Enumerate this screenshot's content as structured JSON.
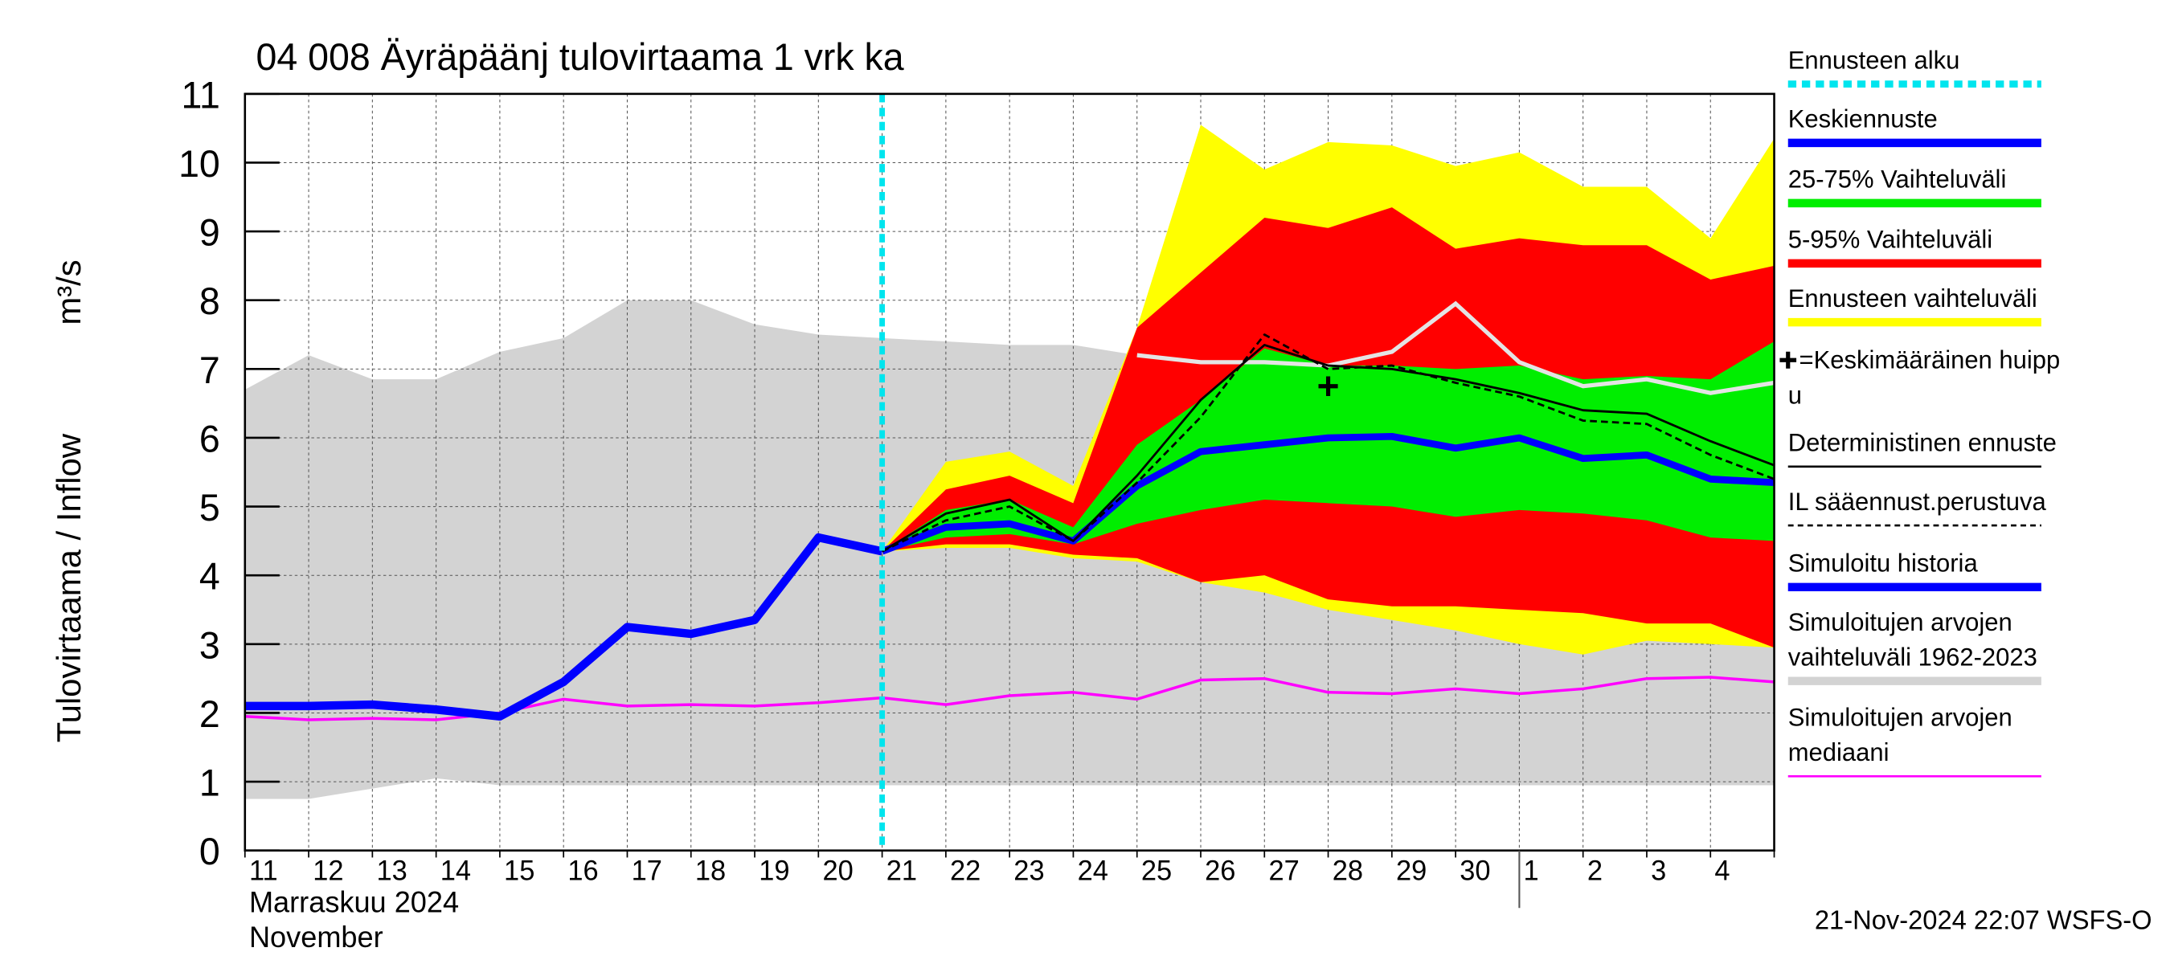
{
  "chart_data": {
    "type": "hydrograph",
    "title": "04 008 Äyräpäänj tulovirtaama 1 vrk ka",
    "y_label": "Tulovirtaama / Inflow",
    "y_unit": "m³/s",
    "x_month_labels": [
      "Marraskuu 2024",
      "November"
    ],
    "timestamp": "21-Nov-2024 22:07 WSFS-O",
    "categories": [
      "11",
      "12",
      "13",
      "14",
      "15",
      "16",
      "17",
      "18",
      "19",
      "20",
      "21",
      "22",
      "23",
      "24",
      "25",
      "26",
      "27",
      "28",
      "29",
      "30",
      "1",
      "2",
      "3",
      "4",
      null
    ],
    "month_break_index": 20,
    "forecast_start_index": 10,
    "ylim": [
      0,
      11
    ],
    "yticks": [
      0,
      1,
      2,
      3,
      4,
      5,
      6,
      7,
      8,
      9,
      10,
      11
    ],
    "grid": true,
    "sim_range": {
      "color": "#d3d3d3",
      "line_color": "#e4e4e4",
      "high": [
        6.7,
        7.2,
        6.85,
        6.85,
        7.25,
        7.45,
        8.0,
        8.0,
        7.65,
        7.5,
        7.45,
        7.4,
        7.35,
        7.35,
        7.2,
        7.1,
        7.1,
        7.05,
        7.25,
        7.95,
        7.1,
        6.75,
        6.85,
        6.65,
        6.8
      ],
      "low": [
        0.75,
        0.75,
        0.9,
        1.05,
        0.95,
        0.95,
        0.95,
        0.95,
        0.95,
        0.95,
        0.95,
        0.95,
        0.95,
        0.95,
        0.95,
        0.95,
        0.95,
        0.95,
        0.95,
        0.95,
        0.95,
        0.95,
        0.95,
        0.95,
        0.95
      ]
    },
    "bands": [
      {
        "color": "#ffff00",
        "high": [
          null,
          null,
          null,
          null,
          null,
          null,
          null,
          null,
          null,
          null,
          4.35,
          5.65,
          5.8,
          5.3,
          7.6,
          10.55,
          9.9,
          10.3,
          10.25,
          9.95,
          10.15,
          9.65,
          9.65,
          8.9,
          10.35
        ],
        "low": [
          null,
          null,
          null,
          null,
          null,
          null,
          null,
          null,
          null,
          null,
          4.35,
          4.4,
          4.4,
          4.25,
          4.2,
          3.9,
          3.75,
          3.5,
          3.35,
          3.2,
          3.0,
          2.85,
          3.05,
          3.0,
          2.95
        ]
      },
      {
        "color": "#ff0000",
        "high": [
          null,
          null,
          null,
          null,
          null,
          null,
          null,
          null,
          null,
          null,
          4.35,
          5.25,
          5.45,
          5.05,
          7.6,
          8.4,
          9.2,
          9.05,
          9.35,
          8.75,
          8.9,
          8.8,
          8.8,
          8.3,
          8.5
        ],
        "low": [
          null,
          null,
          null,
          null,
          null,
          null,
          null,
          null,
          null,
          null,
          4.35,
          4.45,
          4.45,
          4.3,
          4.25,
          3.9,
          4.0,
          3.65,
          3.55,
          3.55,
          3.5,
          3.45,
          3.3,
          3.3,
          2.95
        ]
      },
      {
        "color": "#00ee00",
        "high": [
          null,
          null,
          null,
          null,
          null,
          null,
          null,
          null,
          null,
          null,
          4.35,
          4.95,
          5.1,
          4.7,
          5.9,
          6.55,
          7.3,
          7.05,
          7.05,
          7.0,
          7.05,
          6.85,
          6.9,
          6.85,
          7.4
        ],
        "low": [
          null,
          null,
          null,
          null,
          null,
          null,
          null,
          null,
          null,
          null,
          4.35,
          4.55,
          4.6,
          4.45,
          4.75,
          4.95,
          5.1,
          5.05,
          5.0,
          4.85,
          4.95,
          4.9,
          4.8,
          4.55,
          4.5
        ]
      }
    ],
    "series": [
      {
        "color": "#ff00ff",
        "width": 2,
        "style": "solid",
        "values": [
          1.95,
          1.9,
          1.92,
          1.9,
          2.0,
          2.2,
          2.1,
          2.12,
          2.1,
          2.15,
          2.22,
          2.12,
          2.25,
          2.3,
          2.2,
          2.48,
          2.5,
          2.3,
          2.28,
          2.35,
          2.28,
          2.35,
          2.5,
          2.52,
          2.45
        ]
      },
      {
        "color": "#0000ff",
        "width": 6,
        "style": "solid",
        "values": [
          2.1,
          2.1,
          2.12,
          2.05,
          1.95,
          2.45,
          3.25,
          3.15,
          3.35,
          4.55,
          4.35,
          null,
          null,
          null,
          null,
          null,
          null,
          null,
          null,
          null,
          null,
          null,
          null,
          null,
          null
        ]
      },
      {
        "color": "#0000ff",
        "width": 5,
        "style": "solid",
        "values": [
          null,
          null,
          null,
          null,
          null,
          null,
          null,
          null,
          null,
          null,
          4.35,
          4.7,
          4.75,
          4.5,
          5.3,
          5.8,
          5.9,
          6.0,
          6.02,
          5.85,
          6.0,
          5.7,
          5.75,
          5.4,
          5.35
        ]
      },
      {
        "color": "#000000",
        "width": 1.6,
        "style": "solid",
        "values": [
          null,
          null,
          null,
          null,
          null,
          null,
          null,
          null,
          null,
          null,
          4.35,
          4.9,
          5.1,
          4.5,
          5.45,
          6.55,
          7.35,
          7.05,
          7.0,
          6.85,
          6.65,
          6.4,
          6.35,
          5.95,
          5.6
        ]
      },
      {
        "color": "#000000",
        "width": 1.6,
        "style": "dashed",
        "values": [
          null,
          null,
          null,
          null,
          null,
          null,
          null,
          null,
          null,
          null,
          4.35,
          4.8,
          5.0,
          4.5,
          5.35,
          6.3,
          7.5,
          7.0,
          7.05,
          6.8,
          6.6,
          6.25,
          6.2,
          5.75,
          5.4
        ]
      }
    ],
    "peak": {
      "index": 17,
      "value": 6.75
    },
    "forecast_start_color": "#00e5ee",
    "legend": [
      {
        "lines": [
          "Ennusteen alku"
        ],
        "color": "#00e5ee",
        "style": "dotted"
      },
      {
        "lines": [
          "Keskiennuste"
        ],
        "color": "#0000ff",
        "style": "thick"
      },
      {
        "lines": [
          "25-75% Vaihteluväli"
        ],
        "color": "#00ee00",
        "style": "thick"
      },
      {
        "lines": [
          "5-95% Vaihteluväli"
        ],
        "color": "#ff0000",
        "style": "thick"
      },
      {
        "lines": [
          "Ennusteen vaihteluväli"
        ],
        "color": "#ffff00",
        "style": "thick"
      },
      {
        "lines": [
          "=Keskimääräinen huipp",
          "u"
        ],
        "color": "#000000",
        "style": "plus"
      },
      {
        "lines": [
          "Deterministinen ennuste"
        ],
        "color": "#000000",
        "style": "thin"
      },
      {
        "lines": [
          "IL sääennust.perustuva"
        ],
        "color": "#000000",
        "style": "dashed"
      },
      {
        "lines": [
          "Simuloitu historia"
        ],
        "color": "#0000ff",
        "style": "thick"
      },
      {
        "lines": [
          "Simuloitujen arvojen",
          "vaihteluväli 1962-2023"
        ],
        "color": "#d3d3d3",
        "style": "thick"
      },
      {
        "lines": [
          "Simuloitujen arvojen",
          "mediaani"
        ],
        "color": "#ff00ff",
        "style": "thin"
      }
    ]
  }
}
